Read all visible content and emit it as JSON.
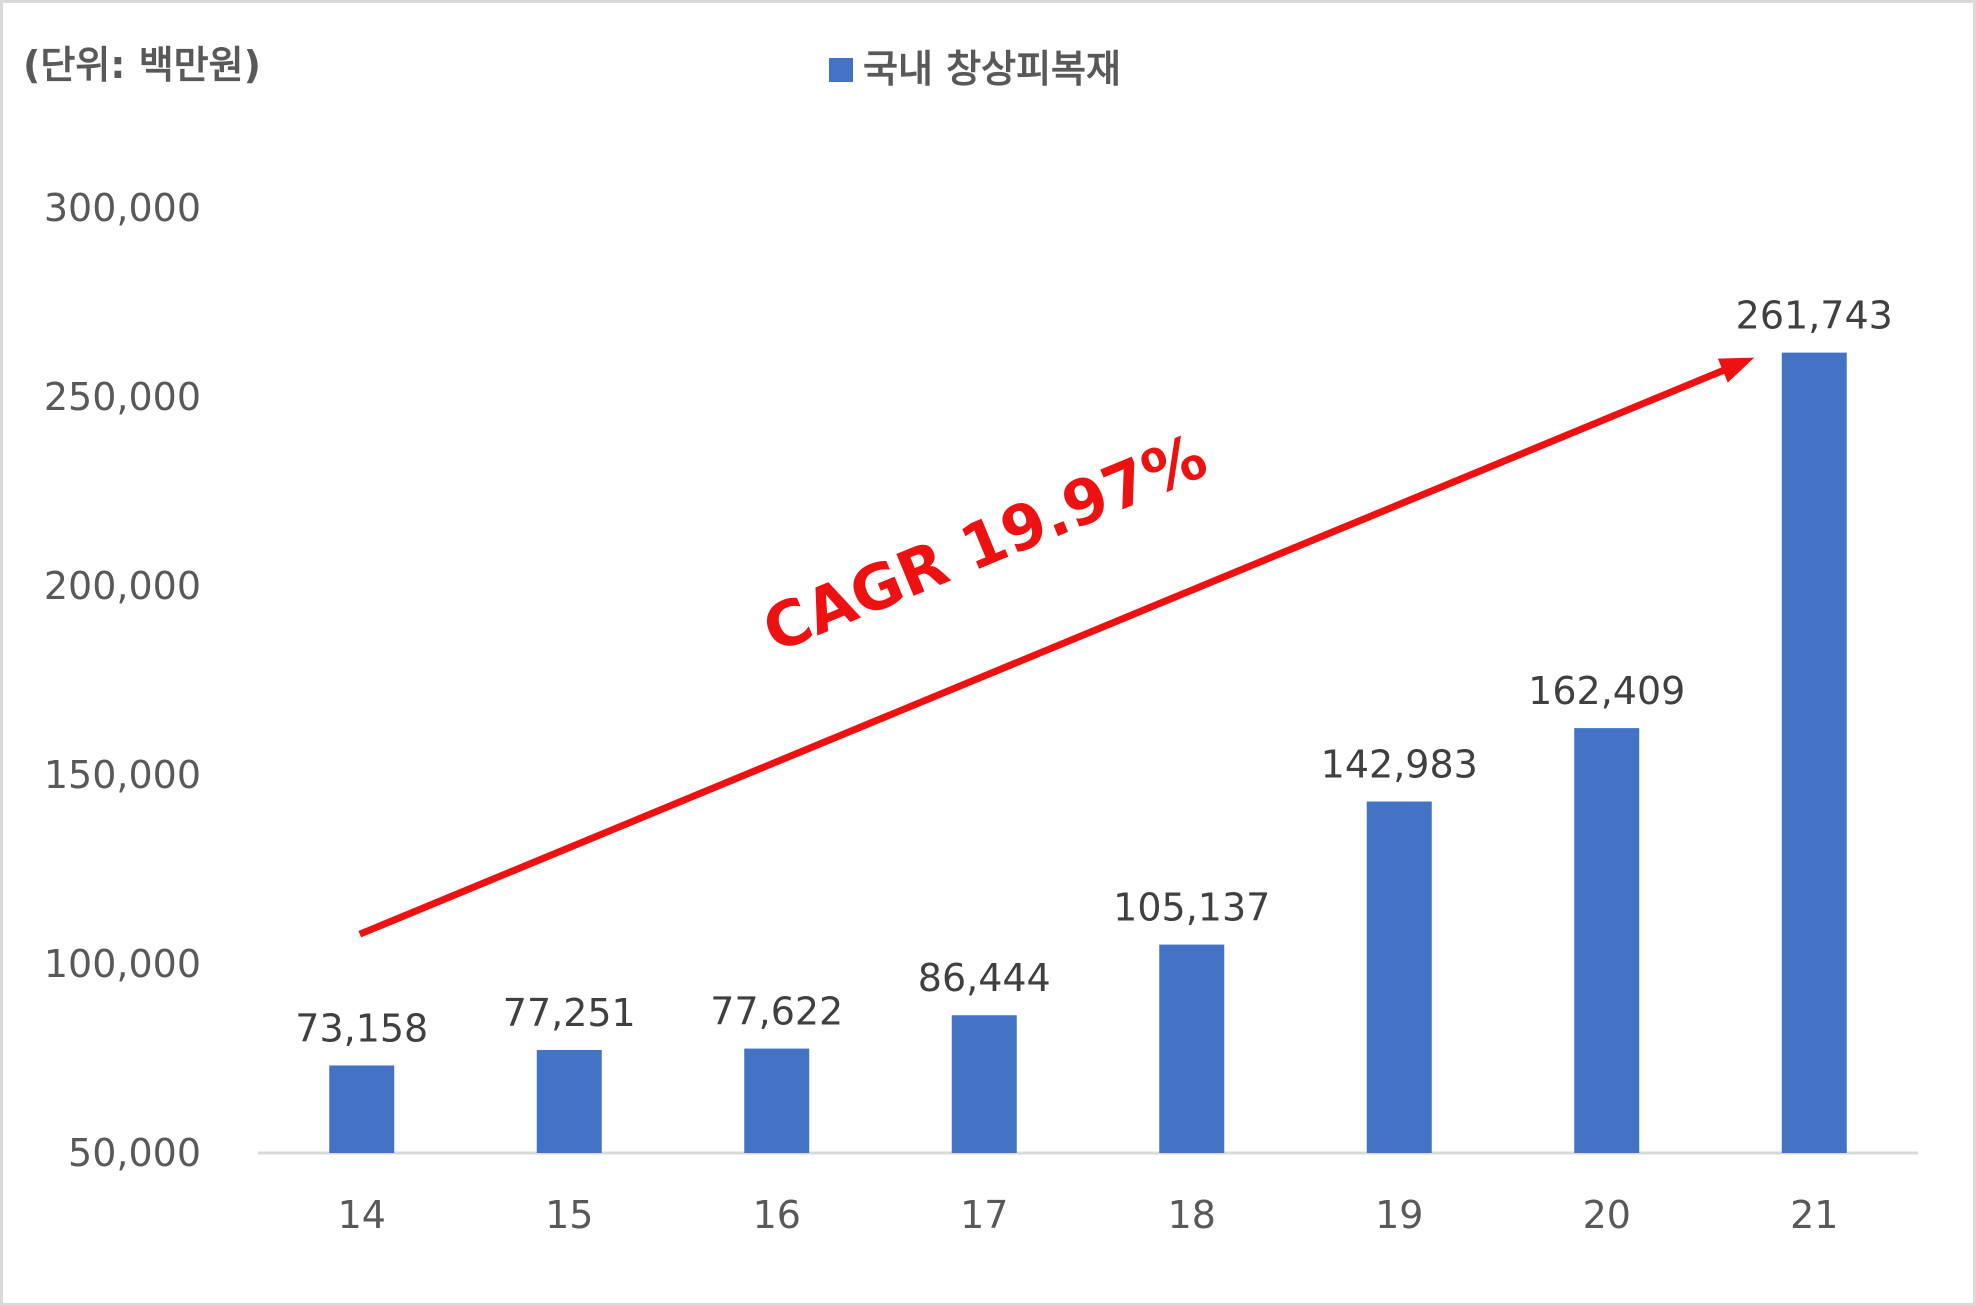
{
  "chart_data": {
    "type": "bar",
    "unit_label": "(단위: 백만원)",
    "categories": [
      "14",
      "15",
      "16",
      "17",
      "18",
      "19",
      "20",
      "21"
    ],
    "series": [
      {
        "name": "국내 창상피복재",
        "values": [
          73158,
          77251,
          77622,
          86444,
          105137,
          142983,
          162409,
          261743
        ],
        "labels": [
          "73,158",
          "77,251",
          "77,622",
          "86,444",
          "105,137",
          "142,983",
          "162,409",
          "261,743"
        ],
        "color": "#4472c4"
      }
    ],
    "ylim": [
      50000,
      300000
    ],
    "yticks": [
      50000,
      100000,
      150000,
      200000,
      250000,
      300000
    ],
    "ytick_labels": [
      "50,000",
      "100,000",
      "150,000",
      "200,000",
      "250,000",
      "300,000"
    ],
    "grid": false,
    "legend": "top-center",
    "annotation": {
      "text": "CAGR 19.97%",
      "color": "#ee1111",
      "from_category": "14",
      "from_value": 110000,
      "to_category": "21",
      "to_value": 261743
    },
    "axis_color": "#d9d9d9",
    "text_color": "#595959"
  }
}
